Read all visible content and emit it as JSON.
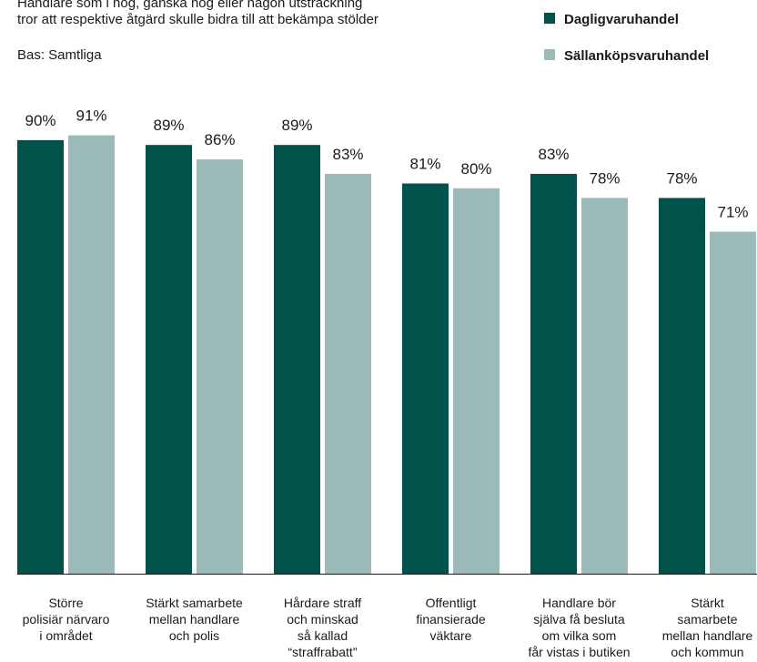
{
  "chart_data": {
    "type": "bar",
    "title": "Handlare som i hög, ganska hög eller någon utsträckning\ntror att respektive åtgärd skulle bidra till att bekämpa stölder",
    "subtitle": "Bas: Samtliga",
    "categories": [
      "Större\npolisiär närvaro\ni området",
      "Stärkt samarbete\nmellan handlare\noch polis",
      "Hårdare straff\noch minskad\nså kallad\n“straffrabatt”",
      "Offentligt\nfinansierade\nväktare",
      "Handlare bör\nsjälva få besluta\nom vilka som\nfår vistas i butiken",
      "Stärkt\nsamarbete\nmellan handlare\noch kommun"
    ],
    "series": [
      {
        "name": "Dagligvaruhandel",
        "color": "#00524a",
        "values": [
          90,
          89,
          89,
          81,
          83,
          78
        ],
        "value_labels": [
          "90%",
          "89%",
          "89%",
          "81%",
          "83%",
          "78%"
        ]
      },
      {
        "name": "Sällanköpsvaruhandel",
        "color": "#9bbab8",
        "values": [
          91,
          86,
          83,
          80,
          78,
          71
        ],
        "value_labels": [
          "91%",
          "86%",
          "83%",
          "80%",
          "78%",
          "71%"
        ]
      }
    ]
  }
}
